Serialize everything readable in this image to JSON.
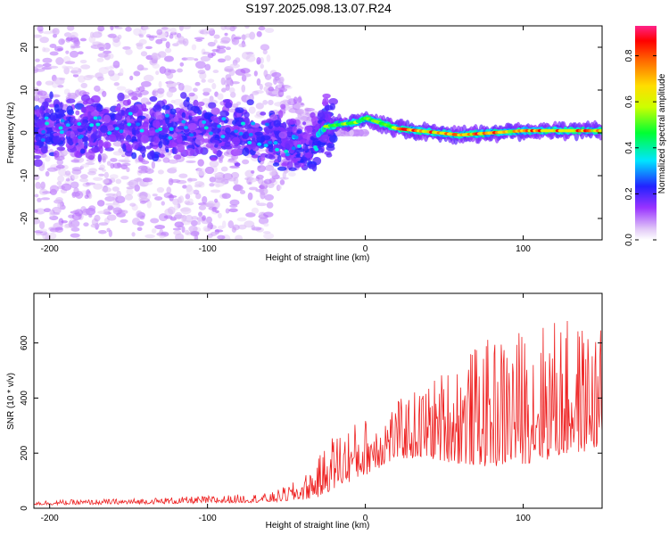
{
  "title": "S197.2025.098.13.07.R24",
  "chart_data": [
    {
      "type": "heatmap",
      "xlabel": "Height of straight line (km)",
      "ylabel": "Frequency (Hz)",
      "xlim": [
        -210,
        150
      ],
      "ylim": [
        -25,
        25
      ],
      "xticks": [
        -200,
        -100,
        0,
        100
      ],
      "yticks": [
        -20,
        -10,
        0,
        10,
        20
      ],
      "grid": false,
      "colorbar": {
        "label": "Normalized spectral amplitude",
        "range": [
          0,
          0.93
        ],
        "ticks": [
          "0.0",
          "0.2",
          "0.4",
          "0.6",
          "0.8"
        ],
        "colormap": "rainbow (white-violet-blue-cyan-green-yellow-red-magenta)"
      },
      "description_data": {
        "ridge_center_hz": [
          {
            "x": -210,
            "y": 0.5
          },
          {
            "x": -150,
            "y": 1.5
          },
          {
            "x": -100,
            "y": 1.0
          },
          {
            "x": -60,
            "y": -0.5
          },
          {
            "x": -38,
            "y": -4.0
          },
          {
            "x": -25,
            "y": 1.5
          },
          {
            "x": -5,
            "y": 2.5
          },
          {
            "x": 0,
            "y": 3.5
          },
          {
            "x": 20,
            "y": 1.0
          },
          {
            "x": 60,
            "y": -0.5
          },
          {
            "x": 100,
            "y": 0.5
          },
          {
            "x": 150,
            "y": 0.5
          }
        ],
        "scatter_region_x": [
          -210,
          -30
        ],
        "coherent_signal_region_x": [
          -30,
          150
        ]
      }
    },
    {
      "type": "line",
      "xlabel": "Height of straight line (km)",
      "ylabel": "SNR (10 * v/v)",
      "xlim": [
        -210,
        150
      ],
      "ylim": [
        0,
        780
      ],
      "xticks": [
        -200,
        -100,
        0,
        100
      ],
      "yticks": [
        0,
        200,
        400,
        600
      ],
      "grid": false,
      "color": "#ee2222",
      "envelope": {
        "x": [
          -210,
          -150,
          -100,
          -60,
          -40,
          -30,
          -20,
          0,
          20,
          40,
          60,
          80,
          100,
          120,
          150
        ],
        "baseline": [
          12,
          15,
          18,
          22,
          30,
          40,
          70,
          120,
          180,
          180,
          160,
          150,
          160,
          180,
          220
        ],
        "peak": [
          28,
          35,
          45,
          55,
          110,
          180,
          280,
          330,
          390,
          460,
          560,
          620,
          660,
          700,
          650
        ]
      }
    }
  ]
}
